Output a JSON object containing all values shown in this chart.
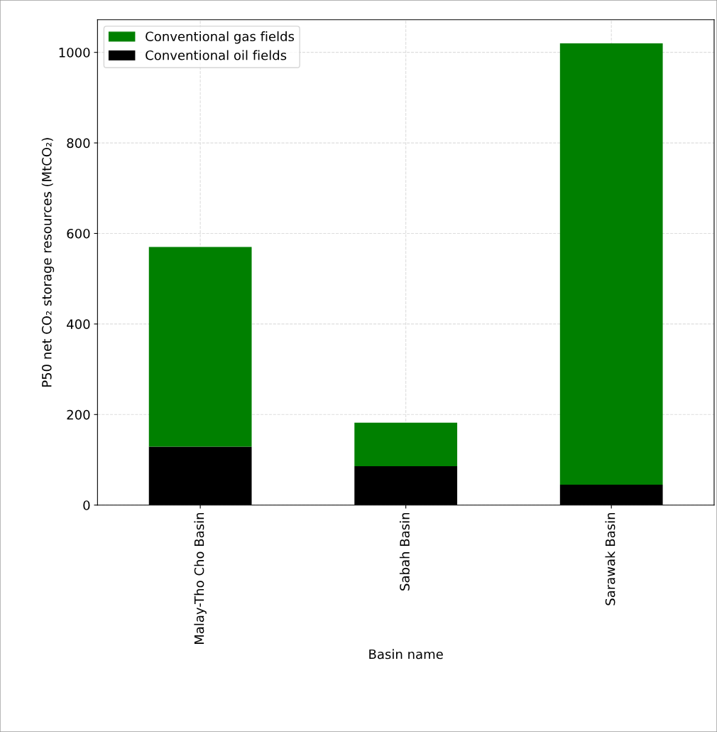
{
  "chart_data": {
    "type": "bar",
    "stacked": true,
    "xlabel": "Basin name",
    "ylabel": "P50 net CO₂ storage resources (MtCO₂)",
    "categories": [
      "Malay-Tho Cho Basin",
      "Sabah Basin",
      "Sarawak Basin"
    ],
    "series": [
      {
        "name": "Conventional oil fields",
        "color": "#000000",
        "values": [
          129,
          86,
          45
        ]
      },
      {
        "name": "Conventional gas fields",
        "color": "#008000",
        "values": [
          441,
          96,
          975
        ]
      }
    ],
    "ylim": [
      0,
      1072
    ],
    "yticks": [
      0,
      200,
      400,
      600,
      800,
      1000
    ],
    "grid": true,
    "legend": "top left"
  }
}
